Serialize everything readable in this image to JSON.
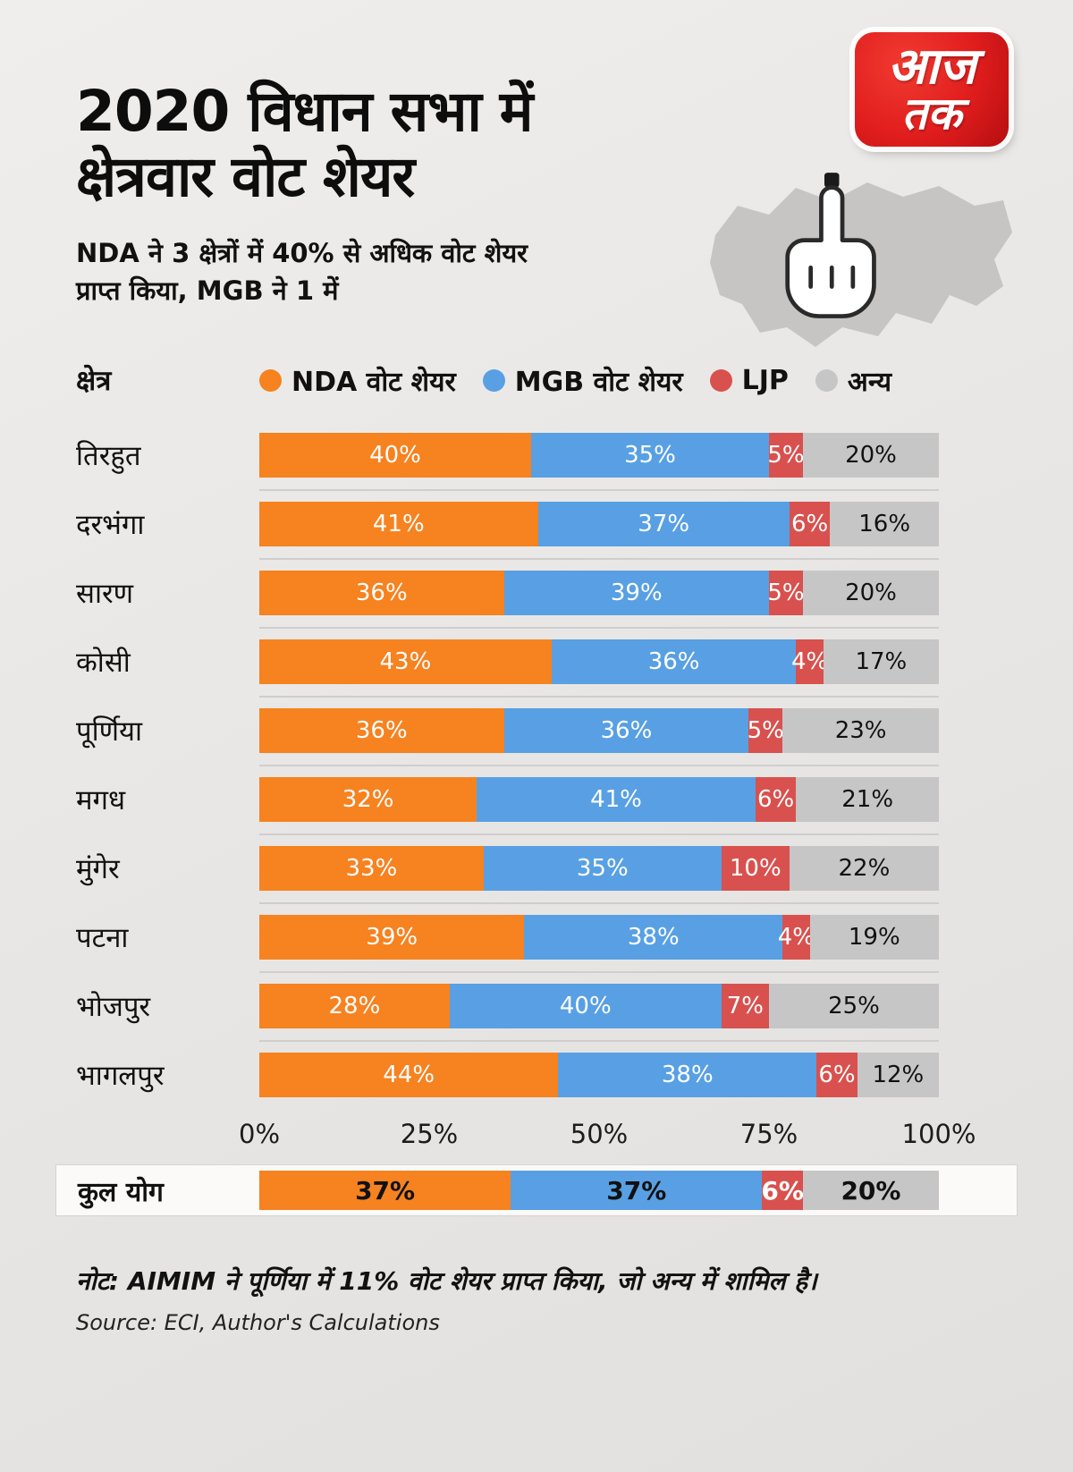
{
  "logo": {
    "line1": "आज",
    "line2": "तक"
  },
  "header": {
    "title_line1": "2020 विधान सभा में",
    "title_line2": "क्षेत्रवार वोट शेयर",
    "subtitle_line1": "NDA ने 3 क्षेत्रों में 40% से अधिक वोट शेयर",
    "subtitle_line2": "प्राप्त किया, MGB ने 1 में"
  },
  "legend": {
    "axis_label": "क्षेत्र",
    "items": [
      {
        "key": "nda",
        "label": "NDA वोट शेयर",
        "color": "#F68220"
      },
      {
        "key": "mgb",
        "label": "MGB वोट शेयर",
        "color": "#58A0E3"
      },
      {
        "key": "ljp",
        "label": "LJP",
        "color": "#D8514E"
      },
      {
        "key": "others",
        "label": "अन्य",
        "color": "#C6C6C6"
      }
    ]
  },
  "chart_data": {
    "type": "bar",
    "orientation": "horizontal",
    "stacked": true,
    "unit": "%",
    "xlim": [
      0,
      100
    ],
    "x_ticks": [
      "0%",
      "25%",
      "50%",
      "75%",
      "100%"
    ],
    "categories": [
      "तिरहुत",
      "दरभंगा",
      "सारण",
      "कोसी",
      "पूर्णिया",
      "मगध",
      "मुंगेर",
      "पटना",
      "भोजपुर",
      "भागलपुर"
    ],
    "series": [
      {
        "key": "nda",
        "name": "NDA वोट शेयर",
        "color": "#F68220",
        "label_color": "#ffffff",
        "values": [
          40,
          41,
          36,
          43,
          36,
          32,
          33,
          39,
          28,
          44
        ]
      },
      {
        "key": "mgb",
        "name": "MGB वोट शेयर",
        "color": "#58A0E3",
        "label_color": "#ffffff",
        "values": [
          35,
          37,
          39,
          36,
          36,
          41,
          35,
          38,
          40,
          38
        ]
      },
      {
        "key": "ljp",
        "name": "LJP",
        "color": "#D8514E",
        "label_color": "#ffffff",
        "values": [
          5,
          6,
          5,
          4,
          5,
          6,
          10,
          4,
          7,
          6
        ]
      },
      {
        "key": "others",
        "name": "अन्य",
        "color": "#C6C6C6",
        "label_color": "#111111",
        "values": [
          20,
          16,
          20,
          17,
          23,
          21,
          22,
          19,
          25,
          12
        ]
      }
    ]
  },
  "total": {
    "label": "कुल योग",
    "values": [
      37,
      37,
      6,
      20
    ],
    "label_colors": [
      "#111111",
      "#111111",
      "#ffffff",
      "#111111"
    ]
  },
  "footer": {
    "note": "नोट: AIMIM ने पूर्णिया में 11% वोट शेयर प्राप्त किया, जो अन्य में शामिल है।",
    "source": "Source: ECI, Author's Calculations"
  }
}
